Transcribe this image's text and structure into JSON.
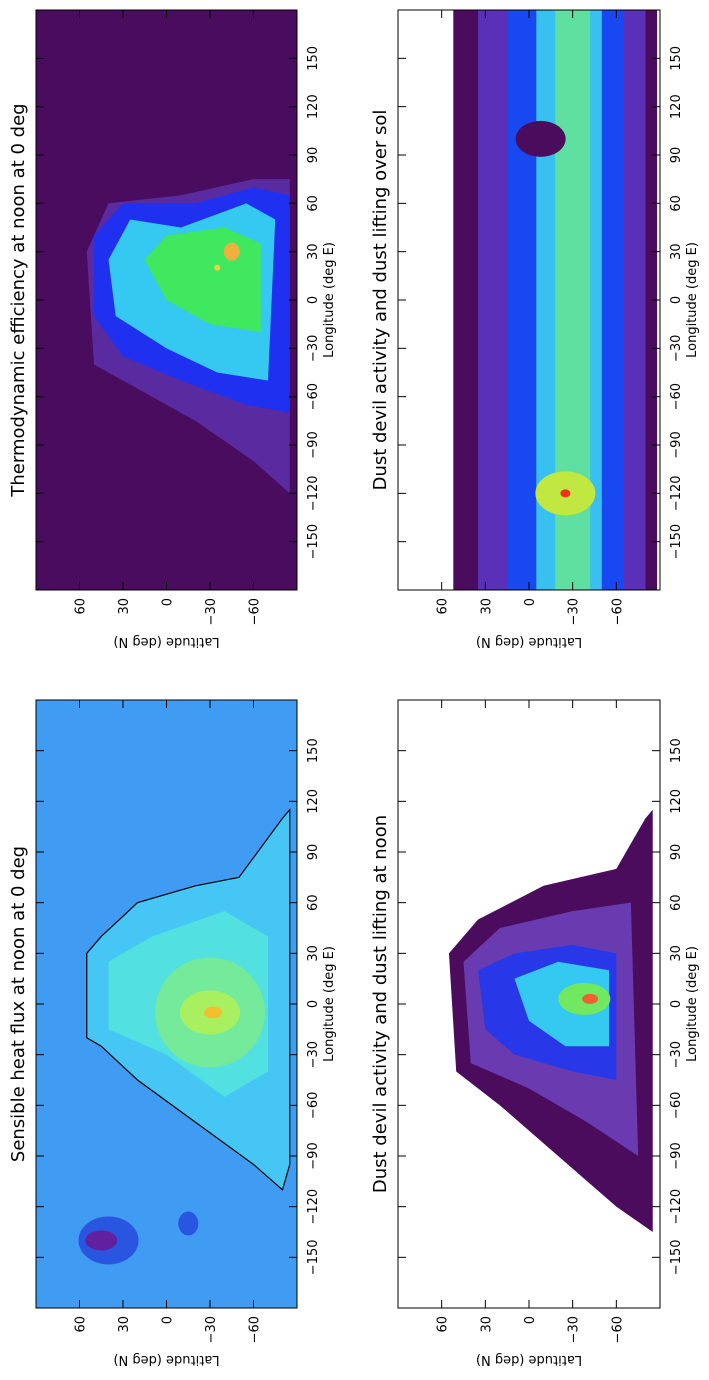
{
  "chart_data": [
    {
      "type": "contour",
      "title": "Sensible heat flux at noon at 0 deg",
      "xlabel": "Longitude (deg E)",
      "ylabel": "Latitude (deg N)",
      "xlim": [
        -180,
        180
      ],
      "ylim": [
        -90,
        90
      ],
      "xticks": [
        {
          "value": -150,
          "label": "−150"
        },
        {
          "value": -120,
          "label": "−120"
        },
        {
          "value": -90,
          "label": "−90"
        },
        {
          "value": -60,
          "label": "−60"
        },
        {
          "value": -30,
          "label": "−30"
        },
        0,
        30,
        60,
        90,
        120,
        150
      ],
      "yticks": [
        {
          "value": -60,
          "label": "−60"
        },
        {
          "value": -30,
          "label": "−30"
        },
        0,
        30,
        60
      ]
    },
    {
      "type": "contour",
      "title": "Thermodynamic efficiency at noon at 0 deg",
      "xlabel": "Longitude (deg E)",
      "ylabel": "Latitude (deg N)",
      "xlim": [
        -180,
        180
      ],
      "ylim": [
        -90,
        90
      ],
      "xticks": [
        {
          "value": -150,
          "label": "−150"
        },
        {
          "value": -120,
          "label": "−120"
        },
        {
          "value": -90,
          "label": "−90"
        },
        {
          "value": -60,
          "label": "−60"
        },
        {
          "value": -30,
          "label": "−30"
        },
        0,
        30,
        60,
        90,
        120,
        150
      ],
      "yticks": [
        {
          "value": -60,
          "label": "−60"
        },
        {
          "value": -30,
          "label": "−30"
        },
        0,
        30,
        60
      ]
    },
    {
      "type": "contour",
      "title": "Dust devil activity and dust lifting at noon",
      "xlabel": "Longitude (deg E)",
      "ylabel": "Latitude (deg N)",
      "xlim": [
        -180,
        180
      ],
      "ylim": [
        -90,
        90
      ],
      "xticks": [
        {
          "value": -150,
          "label": "−150"
        },
        {
          "value": -120,
          "label": "−120"
        },
        {
          "value": -90,
          "label": "−90"
        },
        {
          "value": -60,
          "label": "−60"
        },
        {
          "value": -30,
          "label": "−30"
        },
        0,
        30,
        60,
        90,
        120,
        150
      ],
      "yticks": [
        {
          "value": -60,
          "label": "−60"
        },
        {
          "value": -30,
          "label": "−30"
        },
        0,
        30,
        60
      ]
    },
    {
      "type": "contour",
      "title": "Dust devil activity and dust lifting over sol",
      "xlabel": "Longitude (deg E)",
      "ylabel": "Latitude (deg N)",
      "xlim": [
        -180,
        180
      ],
      "ylim": [
        -90,
        90
      ],
      "xticks": [
        {
          "value": -150,
          "label": "−150"
        },
        {
          "value": -120,
          "label": "−120"
        },
        {
          "value": -90,
          "label": "−90"
        },
        {
          "value": -60,
          "label": "−60"
        },
        {
          "value": -30,
          "label": "−30"
        },
        0,
        30,
        60,
        90,
        120,
        150
      ],
      "yticks": [
        {
          "value": -60,
          "label": "−60"
        },
        {
          "value": -30,
          "label": "−30"
        },
        0,
        30,
        60
      ]
    }
  ]
}
